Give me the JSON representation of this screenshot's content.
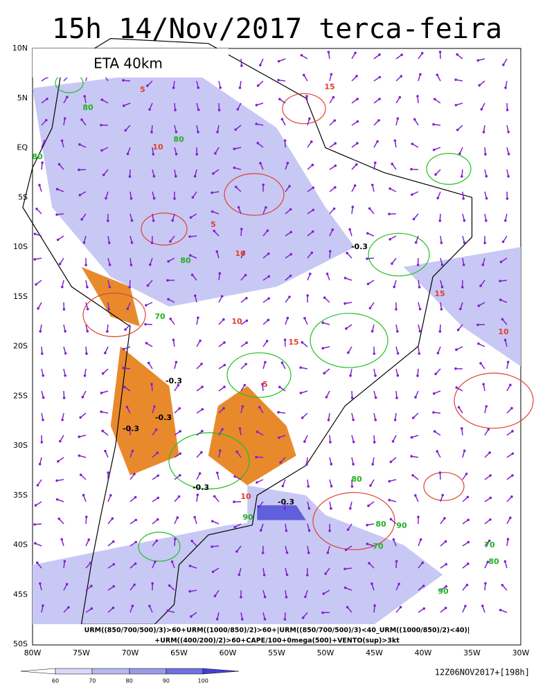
{
  "header": {
    "title": "15h 14/Nov/2017 terca-feira",
    "model_label": "ETA 40km"
  },
  "axes": {
    "lat_labels": [
      "10N",
      "5N",
      "EQ",
      "5S",
      "10S",
      "15S",
      "20S",
      "25S",
      "30S",
      "35S",
      "40S",
      "45S",
      "50S"
    ],
    "lon_labels": [
      "80W",
      "75W",
      "70W",
      "65W",
      "60W",
      "55W",
      "50W",
      "45W",
      "40W",
      "35W",
      "30W"
    ]
  },
  "contour_labels": [
    "80",
    "80",
    "80",
    "80",
    "80",
    "80",
    "80",
    "5",
    "5",
    "5",
    "10",
    "10",
    "10",
    "10",
    "10",
    "15",
    "15",
    "15",
    "-0.3",
    "-0.3",
    "-0.3",
    "-0.3",
    "-0.3",
    "-0.3",
    "70",
    "70",
    "70",
    "90",
    "90",
    "90"
  ],
  "caption": [
    "URM((850/700/500)/3)>60+URM((1000/850)/2)>60+|URM((850/700/500)/3)<40_URM((1000/850)/2)<40)|",
    "+URM((400/200)/2)>60+CAPE/100+0mega(500)+VENTO(sup)>3kt"
  ],
  "colorbar_labels": [
    "60",
    "70",
    "80",
    "90",
    "100"
  ],
  "run_info": "12Z06NOV2017+[198h]"
}
